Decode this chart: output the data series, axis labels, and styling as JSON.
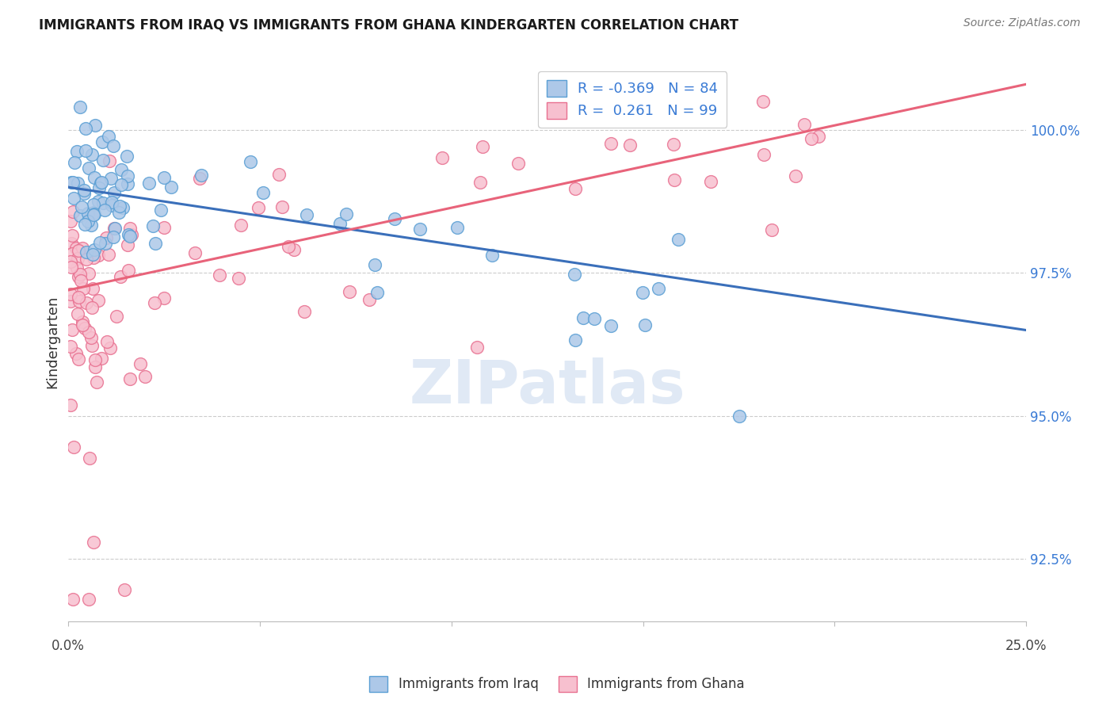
{
  "title": "IMMIGRANTS FROM IRAQ VS IMMIGRANTS FROM GHANA KINDERGARTEN CORRELATION CHART",
  "source": "Source: ZipAtlas.com",
  "ylabel": "Kindergarten",
  "yticks": [
    92.5,
    95.0,
    97.5,
    100.0
  ],
  "ytick_labels": [
    "92.5%",
    "95.0%",
    "97.5%",
    "100.0%"
  ],
  "xmin": 0.0,
  "xmax": 0.25,
  "ymin": 91.4,
  "ymax": 101.2,
  "iraq_color": "#adc8e8",
  "iraq_edge_color": "#5a9fd4",
  "ghana_color": "#f7c0cf",
  "ghana_edge_color": "#e87090",
  "iraq_line_color": "#3a6fba",
  "ghana_line_color": "#e8637a",
  "watermark_color": "#c8d8ee",
  "watermark_text": "ZIPatlas",
  "legend_iraq_label": "R = -0.369   N = 84",
  "legend_ghana_label": "R =  0.261   N = 99",
  "legend_bottom_iraq": "Immigrants from Iraq",
  "legend_bottom_ghana": "Immigrants from Ghana",
  "iraq_line_x0": 0.0,
  "iraq_line_y0": 99.0,
  "iraq_line_x1": 0.25,
  "iraq_line_y1": 96.5,
  "ghana_line_x0": 0.0,
  "ghana_line_y0": 97.2,
  "ghana_line_x1": 0.25,
  "ghana_line_y1": 100.8,
  "title_fontsize": 12,
  "source_fontsize": 10,
  "tick_fontsize": 12,
  "legend_fontsize": 13
}
